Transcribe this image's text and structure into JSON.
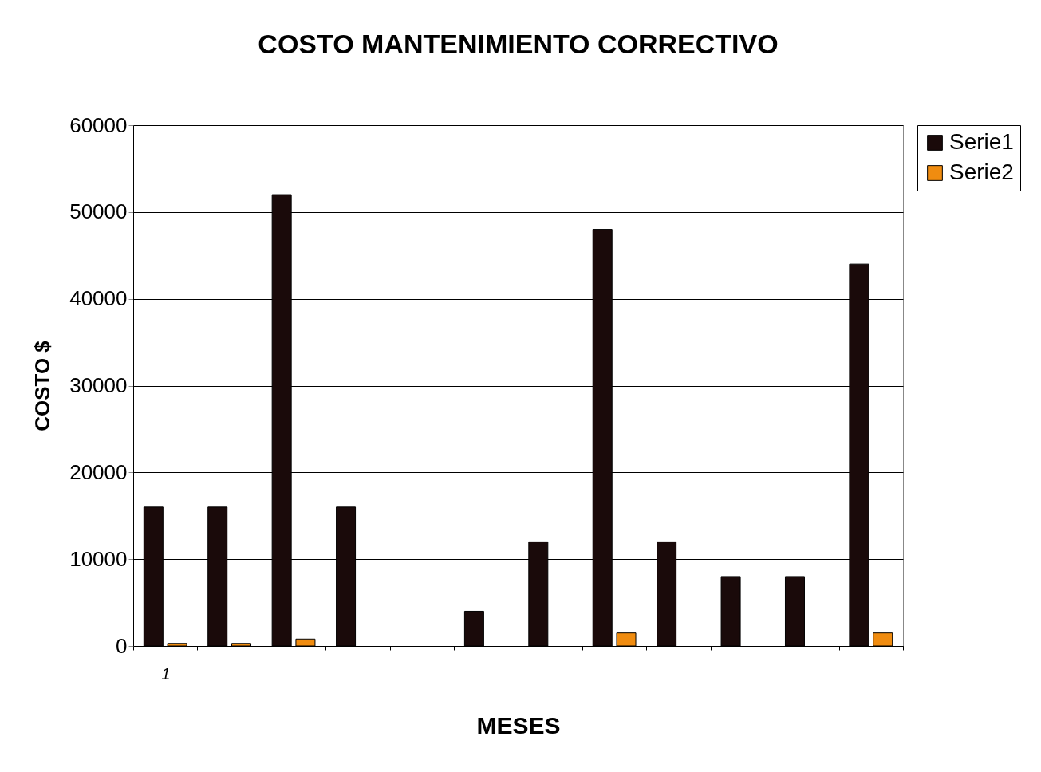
{
  "chart_data": {
    "type": "bar",
    "title": "COSTO MANTENIMIENTO CORRECTIVO",
    "xlabel": "MESES",
    "ylabel": "COSTO $",
    "categories": [
      "1",
      null,
      null,
      null,
      null,
      null,
      null,
      null,
      null,
      null,
      null,
      null
    ],
    "series": [
      {
        "name": "Serie1",
        "color": "#1a0a0a",
        "values": [
          16000,
          16000,
          52000,
          16000,
          0,
          4000,
          12000,
          48000,
          12000,
          8000,
          8000,
          44000
        ]
      },
      {
        "name": "Serie2",
        "color": "#f08c10",
        "values": [
          300,
          300,
          800,
          0,
          0,
          0,
          0,
          1500,
          0,
          0,
          0,
          1500
        ]
      }
    ],
    "ylim": [
      0,
      60000
    ],
    "yticks": [
      0,
      10000,
      20000,
      30000,
      40000,
      50000,
      60000
    ],
    "grid": "y",
    "legend": "right"
  }
}
